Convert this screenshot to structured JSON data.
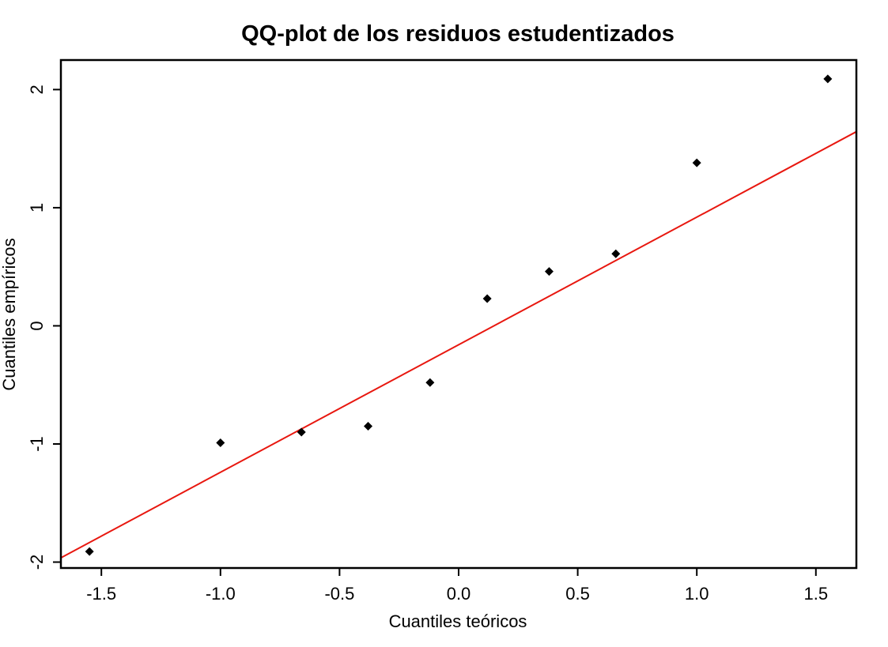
{
  "chart_data": {
    "type": "scatter",
    "title": "QQ-plot de los residuos estudentizados",
    "xlabel": "Cuantiles teóricos",
    "ylabel": "Cuantiles empíricos",
    "xlim": [
      -1.67,
      1.67
    ],
    "ylim": [
      -2.05,
      2.25
    ],
    "x_ticks": [
      -1.5,
      -1.0,
      -0.5,
      0.0,
      0.5,
      1.0,
      1.5
    ],
    "x_tick_labels": [
      "-1.5",
      "-1.0",
      "-0.5",
      "0.0",
      "0.5",
      "1.0",
      "1.5"
    ],
    "y_ticks": [
      -2,
      -1,
      0,
      1,
      2
    ],
    "y_tick_labels": [
      "-2",
      "-1",
      "0",
      "1",
      "2"
    ],
    "grid": false,
    "legend": "none",
    "points": [
      {
        "x": -1.55,
        "y": -1.91
      },
      {
        "x": -1.0,
        "y": -0.99
      },
      {
        "x": -0.66,
        "y": -0.9
      },
      {
        "x": -0.38,
        "y": -0.85
      },
      {
        "x": -0.12,
        "y": -0.48
      },
      {
        "x": 0.12,
        "y": 0.23
      },
      {
        "x": 0.38,
        "y": 0.46
      },
      {
        "x": 0.66,
        "y": 0.61
      },
      {
        "x": 1.0,
        "y": 1.38
      },
      {
        "x": 1.55,
        "y": 2.09
      }
    ],
    "reference_line": {
      "intercept": -0.16,
      "slope": 1.08
    },
    "colors": {
      "points": "#000000",
      "reference_line": "#e8170f",
      "frame": "#000000"
    }
  }
}
